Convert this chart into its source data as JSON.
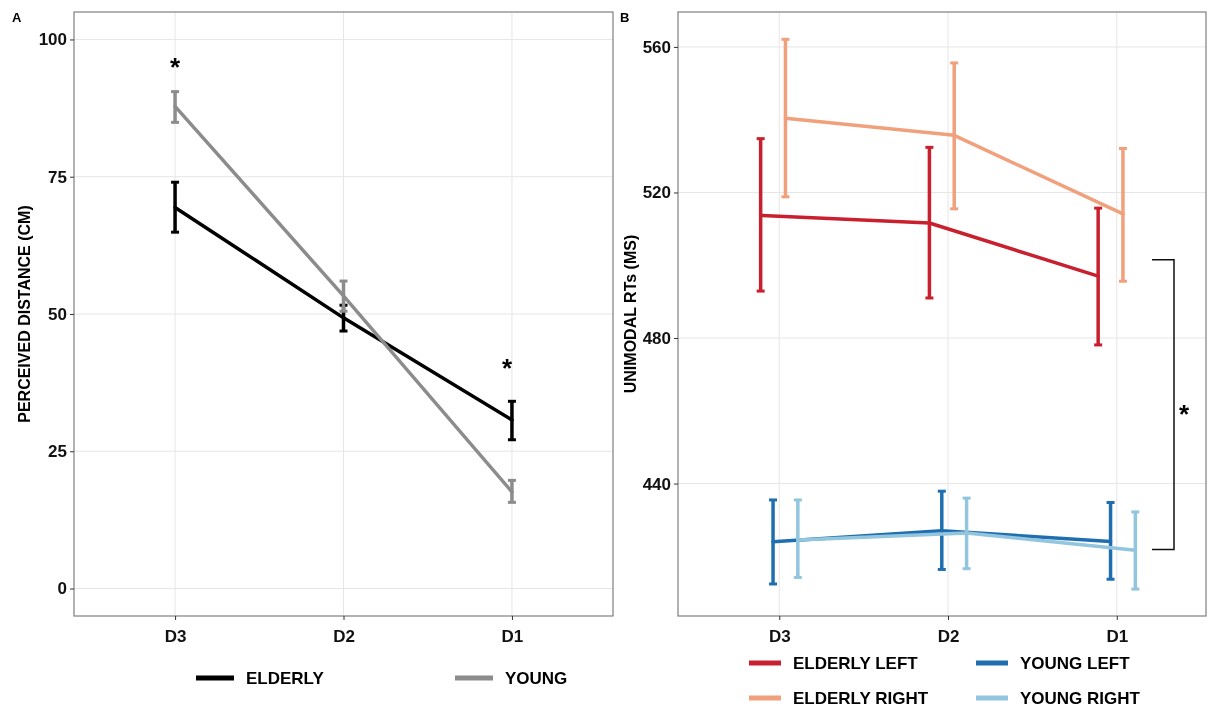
{
  "chart_data": [
    {
      "type": "line",
      "title": "A",
      "ylabel": "PERCEIVED DISTANCE (CM)",
      "categories": [
        "D3",
        "D2",
        "D1"
      ],
      "ylim": [
        -5,
        105
      ],
      "yticks": [
        0,
        25,
        50,
        75,
        100
      ],
      "grid": true,
      "legend": "bottom",
      "series": [
        {
          "name": "ELDERLY",
          "color": "#000000",
          "values": [
            69.4,
            49.3,
            30.7
          ],
          "errors": [
            [
              64.9,
              74.0
            ],
            [
              46.9,
              51.6
            ],
            [
              27.1,
              34.1
            ]
          ]
        },
        {
          "name": "YOUNG",
          "color": "#8c8c8c",
          "values": [
            87.8,
            53.3,
            17.6
          ],
          "errors": [
            [
              84.9,
              90.5
            ],
            [
              50.5,
              56.0
            ],
            [
              15.7,
              19.7
            ]
          ]
        }
      ],
      "annotations": [
        "*",
        "*"
      ]
    },
    {
      "type": "line",
      "title": "B",
      "ylabel": "UNIMODAL RTs (MS)",
      "categories": [
        "D3",
        "D2",
        "D1"
      ],
      "ylim": [
        403.6,
        569.6
      ],
      "yticks": [
        440,
        480,
        520,
        560
      ],
      "grid": true,
      "legend": "bottom",
      "series": [
        {
          "name": "ELDERLY LEFT",
          "color": "#c8202e",
          "values": [
            513.7,
            511.6,
            497.0
          ],
          "errors": [
            [
              492.9,
              534.8
            ],
            [
              491.0,
              532.4
            ],
            [
              478.1,
              515.7
            ]
          ]
        },
        {
          "name": "YOUNG LEFT",
          "color": "#1f6fb0",
          "values": [
            424.0,
            427.0,
            424.1
          ],
          "errors": [
            [
              412.4,
              435.5
            ],
            [
              416.4,
              437.9
            ],
            [
              413.7,
              434.8
            ]
          ]
        },
        {
          "name": "ELDERLY RIGHT",
          "color": "#f1a07c",
          "values": [
            540.4,
            535.7,
            514.1
          ],
          "errors": [
            [
              518.8,
              562.1
            ],
            [
              515.5,
              555.6
            ],
            [
              495.6,
              532.1
            ]
          ]
        },
        {
          "name": "YOUNG RIGHT",
          "color": "#92c5de",
          "values": [
            424.5,
            426.4,
            421.7
          ],
          "errors": [
            [
              414.2,
              435.5
            ],
            [
              416.6,
              436.0
            ],
            [
              411.0,
              432.2
            ]
          ]
        }
      ],
      "annotations": [
        "*"
      ]
    }
  ]
}
